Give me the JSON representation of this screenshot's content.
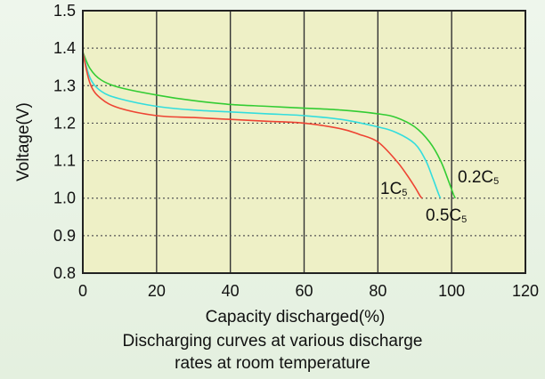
{
  "colors": {
    "background": "#e4f0df",
    "plot_area": "#eef0c6",
    "grid_major": "#333333",
    "grid_dotted": "#555555"
  },
  "caption": {
    "line1": "Discharging curves at various discharge",
    "line2": "rates at room temperature"
  },
  "chart_data": {
    "type": "line",
    "title": "",
    "xlabel": "Capacity discharged(%)",
    "ylabel": "Voltage(V)",
    "xlim": [
      0,
      120
    ],
    "ylim": [
      0.8,
      1.5
    ],
    "x_ticks": [
      0,
      20,
      40,
      60,
      80,
      100,
      120
    ],
    "y_ticks": [
      0.8,
      0.9,
      1.0,
      1.1,
      1.2,
      1.3,
      1.4,
      1.5
    ],
    "x_tick_labels": [
      "0",
      "20",
      "40",
      "60",
      "80",
      "100",
      "120"
    ],
    "y_tick_labels": [
      "0.8",
      "0.9",
      "1.0",
      "1.1",
      "1.2",
      "1.3",
      "1.4",
      "1.5"
    ],
    "grid": true,
    "series": [
      {
        "name": "0.2C5",
        "label_main": "0.2C",
        "label_sub": "5",
        "color": "#33cc33",
        "x": [
          0,
          2,
          5,
          10,
          20,
          30,
          40,
          50,
          60,
          70,
          80,
          85,
          90,
          94,
          97,
          99,
          100.5,
          101
        ],
        "y": [
          1.39,
          1.345,
          1.315,
          1.295,
          1.275,
          1.26,
          1.25,
          1.245,
          1.24,
          1.235,
          1.225,
          1.215,
          1.19,
          1.15,
          1.1,
          1.05,
          1.01,
          1.0
        ]
      },
      {
        "name": "0.5C5",
        "label_main": "0.5C",
        "label_sub": "5",
        "color": "#33dddd",
        "x": [
          0,
          2,
          5,
          10,
          20,
          30,
          40,
          50,
          60,
          70,
          80,
          85,
          90,
          93,
          95,
          96.5,
          97
        ],
        "y": [
          1.39,
          1.32,
          1.285,
          1.265,
          1.245,
          1.235,
          1.23,
          1.225,
          1.22,
          1.21,
          1.19,
          1.175,
          1.145,
          1.1,
          1.05,
          1.01,
          1.0
        ]
      },
      {
        "name": "1C5",
        "label_main": "1C",
        "label_sub": "5",
        "color": "#ee4433",
        "x": [
          0,
          2,
          5,
          10,
          20,
          30,
          40,
          50,
          60,
          70,
          75,
          80,
          85,
          88,
          90,
          91.5,
          92
        ],
        "y": [
          1.39,
          1.305,
          1.265,
          1.24,
          1.22,
          1.215,
          1.21,
          1.205,
          1.2,
          1.185,
          1.17,
          1.15,
          1.1,
          1.06,
          1.03,
          1.005,
          1.0
        ]
      }
    ]
  }
}
